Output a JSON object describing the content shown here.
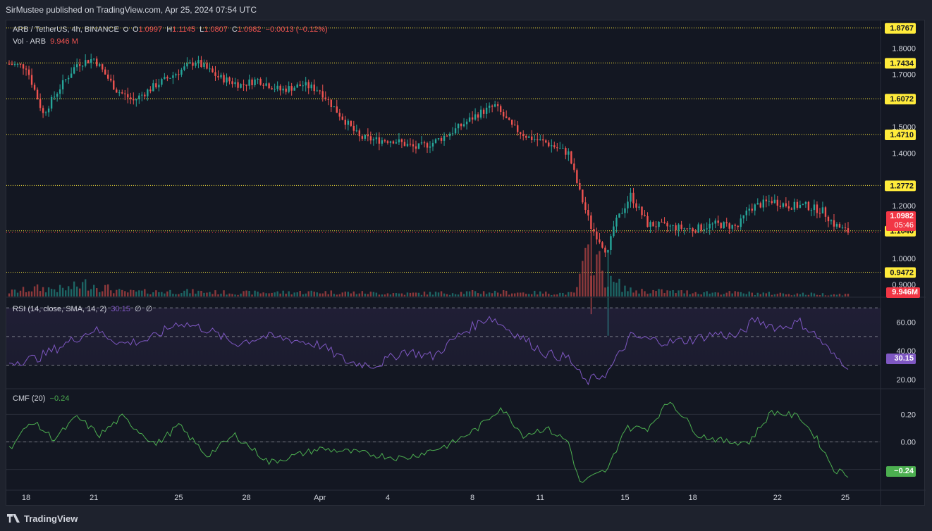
{
  "header": {
    "published": "SirMustee published on TradingView.com, Apr 25, 2024 07:54 UTC"
  },
  "footer": {
    "brand": "TradingView"
  },
  "legend": {
    "symbol": "ARB / TetherUS, 4h, BINANCE",
    "o_label": "O",
    "o_value": "1.0997",
    "h_label": "H",
    "h_value": "1.1145",
    "l_label": "L",
    "l_value": "1.0807",
    "c_label": "C",
    "c_value": "1.0982",
    "change": "−0.0013 (−0.12%)",
    "vol_label": "Vol · ARB",
    "vol_value": "9.946 M"
  },
  "rsi_legend": {
    "label": "RSI (14, close, SMA, 14, 2)",
    "value": "30.15",
    "extra1": "∅",
    "extra2": "∅"
  },
  "cmf_legend": {
    "label": "CMF (20)",
    "value": "−0.24"
  },
  "colors": {
    "up": "#26a69a",
    "down": "#ef5350",
    "level": "#ffeb3b",
    "rsi": "#7e57c2",
    "cmf": "#4caf50"
  },
  "price_axis": [
    "1.8000",
    "1.7000",
    "1.5000",
    "1.4000",
    "1.2000",
    "1.0000",
    "0.9000"
  ],
  "price_axis_values": [
    1.8,
    1.7,
    1.5,
    1.4,
    1.2,
    1.0,
    0.9
  ],
  "levels": [
    {
      "label": "1.8767",
      "value": 1.8767
    },
    {
      "label": "1.7434",
      "value": 1.7434
    },
    {
      "label": "1.6072",
      "value": 1.6072
    },
    {
      "label": "1.4710",
      "value": 1.471
    },
    {
      "label": "1.2772",
      "value": 1.2772
    },
    {
      "label": "1.1046",
      "value": 1.1046
    },
    {
      "label": "0.9472",
      "value": 0.9472
    }
  ],
  "last_price": {
    "label": "1.0982",
    "countdown": "05:46",
    "value": 1.0982
  },
  "volume_badge": "9.946M",
  "rsi_axis": [
    "60.00",
    "40.00",
    "20.00"
  ],
  "rsi_axis_values": [
    60,
    40,
    20
  ],
  "rsi_badge": "30.15",
  "cmf_axis": [
    "0.20",
    "0.00"
  ],
  "cmf_axis_values": [
    0.2,
    0.0
  ],
  "cmf_badge": "−0.24",
  "time_axis": [
    "18",
    "21",
    "25",
    "28",
    "Apr",
    "4",
    "8",
    "11",
    "15",
    "18",
    "22",
    "25"
  ],
  "time_axis_index": [
    6,
    30,
    60,
    84,
    110,
    134,
    164,
    188,
    218,
    242,
    272,
    296
  ],
  "chart_data": {
    "type": "candlestick",
    "timeframe": "4h",
    "symbol": "ARB / TetherUS",
    "ylim": [
      0.86,
      1.9
    ],
    "close_anchors": [
      [
        0,
        1.74
      ],
      [
        6,
        1.73
      ],
      [
        12,
        1.55
      ],
      [
        18,
        1.65
      ],
      [
        24,
        1.74
      ],
      [
        30,
        1.76
      ],
      [
        38,
        1.64
      ],
      [
        44,
        1.6
      ],
      [
        52,
        1.66
      ],
      [
        60,
        1.71
      ],
      [
        66,
        1.75
      ],
      [
        74,
        1.69
      ],
      [
        82,
        1.66
      ],
      [
        88,
        1.68
      ],
      [
        96,
        1.64
      ],
      [
        104,
        1.66
      ],
      [
        110,
        1.64
      ],
      [
        116,
        1.56
      ],
      [
        124,
        1.46
      ],
      [
        130,
        1.45
      ],
      [
        136,
        1.45
      ],
      [
        144,
        1.42
      ],
      [
        150,
        1.44
      ],
      [
        158,
        1.49
      ],
      [
        166,
        1.55
      ],
      [
        172,
        1.58
      ],
      [
        178,
        1.5
      ],
      [
        184,
        1.46
      ],
      [
        190,
        1.44
      ],
      [
        198,
        1.4
      ],
      [
        202,
        1.25
      ],
      [
        206,
        1.12
      ],
      [
        212,
        1.02
      ],
      [
        214,
        1.12
      ],
      [
        220,
        1.24
      ],
      [
        226,
        1.13
      ],
      [
        234,
        1.12
      ],
      [
        242,
        1.11
      ],
      [
        250,
        1.13
      ],
      [
        258,
        1.12
      ],
      [
        262,
        1.19
      ],
      [
        270,
        1.22
      ],
      [
        276,
        1.2
      ],
      [
        282,
        1.2
      ],
      [
        288,
        1.18
      ],
      [
        292,
        1.13
      ],
      [
        297,
        1.098
      ]
    ],
    "volume_anchors": [
      [
        0,
        0.3
      ],
      [
        10,
        0.55
      ],
      [
        20,
        0.5
      ],
      [
        28,
        0.9
      ],
      [
        40,
        0.3
      ],
      [
        60,
        0.35
      ],
      [
        80,
        0.25
      ],
      [
        110,
        0.3
      ],
      [
        140,
        0.2
      ],
      [
        170,
        0.3
      ],
      [
        200,
        0.2
      ],
      [
        206,
        3.2
      ],
      [
        212,
        1.0
      ],
      [
        216,
        0.8
      ],
      [
        220,
        0.4
      ],
      [
        240,
        0.3
      ],
      [
        270,
        0.2
      ],
      [
        296,
        0.15
      ]
    ],
    "rsi_anchors": [
      [
        0,
        32
      ],
      [
        10,
        35
      ],
      [
        20,
        45
      ],
      [
        30,
        55
      ],
      [
        40,
        45
      ],
      [
        50,
        48
      ],
      [
        60,
        60
      ],
      [
        70,
        55
      ],
      [
        80,
        45
      ],
      [
        90,
        50
      ],
      [
        100,
        48
      ],
      [
        110,
        44
      ],
      [
        120,
        32
      ],
      [
        130,
        30
      ],
      [
        140,
        40
      ],
      [
        150,
        36
      ],
      [
        160,
        52
      ],
      [
        170,
        64
      ],
      [
        176,
        56
      ],
      [
        184,
        46
      ],
      [
        190,
        38
      ],
      [
        198,
        35
      ],
      [
        204,
        18
      ],
      [
        212,
        25
      ],
      [
        220,
        50
      ],
      [
        226,
        48
      ],
      [
        234,
        46
      ],
      [
        242,
        48
      ],
      [
        250,
        52
      ],
      [
        258,
        50
      ],
      [
        264,
        62
      ],
      [
        272,
        56
      ],
      [
        280,
        60
      ],
      [
        286,
        50
      ],
      [
        292,
        36
      ],
      [
        297,
        30
      ]
    ],
    "cmf_anchors": [
      [
        0,
        -0.05
      ],
      [
        8,
        0.15
      ],
      [
        16,
        0.02
      ],
      [
        24,
        0.18
      ],
      [
        32,
        0.05
      ],
      [
        40,
        0.18
      ],
      [
        52,
        -0.02
      ],
      [
        60,
        0.12
      ],
      [
        70,
        -0.1
      ],
      [
        80,
        0.05
      ],
      [
        92,
        -0.15
      ],
      [
        110,
        -0.05
      ],
      [
        124,
        -0.08
      ],
      [
        140,
        -0.12
      ],
      [
        156,
        -0.02
      ],
      [
        166,
        0.1
      ],
      [
        174,
        0.25
      ],
      [
        182,
        0.05
      ],
      [
        190,
        0.1
      ],
      [
        198,
        0.0
      ],
      [
        202,
        -0.3
      ],
      [
        212,
        -0.2
      ],
      [
        218,
        0.1
      ],
      [
        226,
        0.1
      ],
      [
        234,
        0.3
      ],
      [
        244,
        0.05
      ],
      [
        254,
        0.0
      ],
      [
        262,
        0.0
      ],
      [
        270,
        0.22
      ],
      [
        280,
        0.18
      ],
      [
        286,
        0.02
      ],
      [
        292,
        -0.2
      ],
      [
        297,
        -0.24
      ]
    ]
  }
}
